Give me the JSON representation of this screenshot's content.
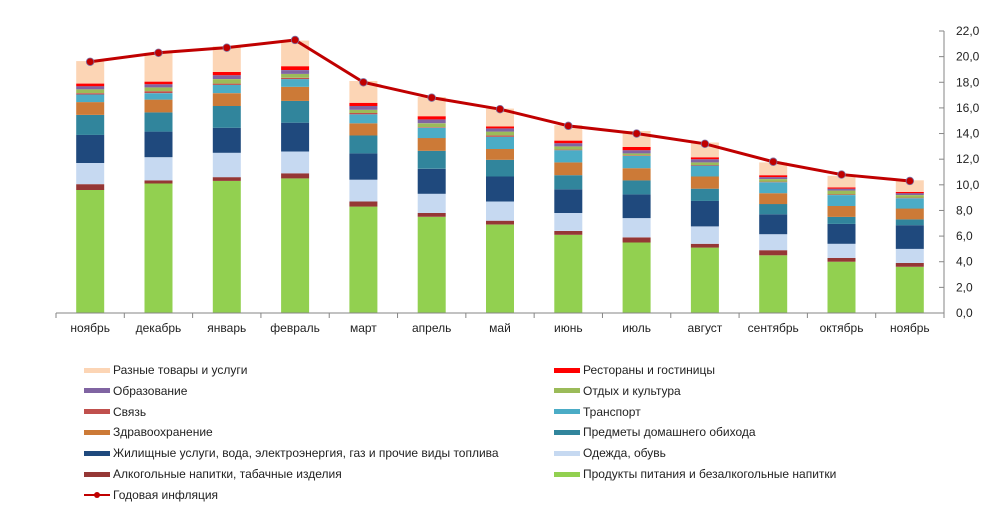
{
  "chart_data": {
    "type": "bar",
    "stacked": true,
    "title": "",
    "xlabel": "",
    "ylabel": "",
    "ylim": [
      0,
      22
    ],
    "y_axis_side": "right",
    "y_ticks": [
      "0,0",
      "2,0",
      "4,0",
      "6,0",
      "8,0",
      "10,0",
      "12,0",
      "14,0",
      "16,0",
      "18,0",
      "20,0",
      "22,0"
    ],
    "y_tick_values": [
      0,
      2,
      4,
      6,
      8,
      10,
      12,
      14,
      16,
      18,
      20,
      22
    ],
    "grid": false,
    "legend_position": "bottom",
    "categories": [
      "ноябрь",
      "декабрь",
      "январь",
      "февраль",
      "март",
      "апрель",
      "май",
      "июнь",
      "июль",
      "август",
      "сентябрь",
      "октябрь",
      "ноябрь"
    ],
    "series": [
      {
        "key": "food",
        "name": "Продукты питания и безалкогольные напитки",
        "color": "#92d050",
        "values": [
          9.6,
          10.1,
          10.3,
          10.5,
          8.3,
          7.5,
          6.9,
          6.1,
          5.5,
          5.1,
          4.5,
          4.0,
          3.6
        ]
      },
      {
        "key": "alcohol",
        "name": "Алкогольные напитки, табачные изделия",
        "color": "#953735",
        "values": [
          0.45,
          0.25,
          0.3,
          0.4,
          0.4,
          0.3,
          0.3,
          0.3,
          0.4,
          0.3,
          0.4,
          0.3,
          0.3
        ]
      },
      {
        "key": "clothing",
        "name": "Одежда, обувь",
        "color": "#c6d9f1",
        "values": [
          1.65,
          1.8,
          1.9,
          1.7,
          1.7,
          1.5,
          1.5,
          1.4,
          1.5,
          1.35,
          1.25,
          1.1,
          1.1
        ]
      },
      {
        "key": "housing",
        "name": "Жилищные услуги, вода, электроэнергия, газ и прочие виды топлива",
        "color": "#1f497d",
        "values": [
          2.2,
          2.0,
          1.95,
          2.25,
          2.05,
          1.95,
          1.95,
          1.85,
          1.85,
          2.0,
          1.55,
          1.55,
          1.85
        ]
      },
      {
        "key": "furnishings",
        "name": "Предметы домашнего обихода",
        "color": "#31859c",
        "values": [
          1.55,
          1.5,
          1.7,
          1.7,
          1.4,
          1.4,
          1.3,
          1.1,
          1.1,
          0.95,
          0.8,
          0.55,
          0.45
        ]
      },
      {
        "key": "health",
        "name": "Здравоохранение",
        "color": "#cc7a37",
        "values": [
          1.0,
          1.0,
          1.0,
          1.1,
          0.95,
          1.0,
          0.85,
          1.0,
          0.95,
          0.95,
          0.85,
          0.85,
          0.85
        ]
      },
      {
        "key": "transport",
        "name": "Транспорт",
        "color": "#4bacc6",
        "values": [
          0.6,
          0.5,
          0.65,
          0.6,
          0.7,
          0.8,
          0.95,
          0.95,
          0.95,
          0.85,
          0.85,
          0.85,
          0.8
        ]
      },
      {
        "key": "communication",
        "name": "Связь",
        "color": "#c0504d",
        "values": [
          0.1,
          0.15,
          0.1,
          0.1,
          0.1,
          0.05,
          0.1,
          0.05,
          0.05,
          0.05,
          0.05,
          0.05,
          0.05
        ]
      },
      {
        "key": "leisure",
        "name": "Отдых и культура",
        "color": "#9bbb59",
        "values": [
          0.3,
          0.3,
          0.35,
          0.3,
          0.25,
          0.3,
          0.3,
          0.25,
          0.15,
          0.2,
          0.2,
          0.3,
          0.2
        ]
      },
      {
        "key": "education",
        "name": "Образование",
        "color": "#8064a2",
        "values": [
          0.25,
          0.25,
          0.3,
          0.3,
          0.3,
          0.3,
          0.25,
          0.25,
          0.25,
          0.25,
          0.15,
          0.15,
          0.15
        ]
      },
      {
        "key": "restaurants",
        "name": "Рестораны и гостиницы",
        "color": "#ff0000",
        "values": [
          0.2,
          0.2,
          0.25,
          0.3,
          0.25,
          0.25,
          0.15,
          0.2,
          0.25,
          0.15,
          0.15,
          0.1,
          0.1
        ]
      },
      {
        "key": "misc",
        "name": "Разные товары и услуги",
        "color": "#fcd5b5",
        "values": [
          1.75,
          2.25,
          2.0,
          2.0,
          1.7,
          1.5,
          1.4,
          1.2,
          1.25,
          1.15,
          1.0,
          0.9,
          0.9
        ]
      }
    ],
    "line_series": {
      "name": "Годовая инфляция",
      "color": "#c00000",
      "values": [
        19.6,
        20.3,
        20.7,
        21.3,
        18.0,
        16.8,
        15.9,
        14.6,
        14.0,
        13.2,
        11.8,
        10.8,
        10.3
      ]
    }
  },
  "legend": {
    "items": [
      {
        "key": "misc",
        "label": "Разные товары и услуги",
        "color": "#fcd5b5"
      },
      {
        "key": "restaurants",
        "label": "Рестораны и гостиницы",
        "color": "#ff0000"
      },
      {
        "key": "education",
        "label": "Образование",
        "color": "#8064a2"
      },
      {
        "key": "leisure",
        "label": "Отдых и культура",
        "color": "#9bbb59"
      },
      {
        "key": "communication",
        "label": "Связь",
        "color": "#c0504d"
      },
      {
        "key": "transport",
        "label": "Транспорт",
        "color": "#4bacc6"
      },
      {
        "key": "health",
        "label": "Здравоохранение",
        "color": "#cc7a37"
      },
      {
        "key": "furnishings",
        "label": "Предметы домашнего обихода",
        "color": "#31859c"
      },
      {
        "key": "housing",
        "label": "Жилищные услуги, вода, электроэнергия, газ и прочие виды топлива",
        "color": "#1f497d"
      },
      {
        "key": "clothing",
        "label": "Одежда, обувь",
        "color": "#c6d9f1"
      },
      {
        "key": "alcohol",
        "label": "Алкогольные напитки, табачные изделия",
        "color": "#953735"
      },
      {
        "key": "food",
        "label": "Продукты питания и безалкогольные напитки",
        "color": "#92d050"
      },
      {
        "key": "inflation",
        "label": "Годовая инфляция",
        "color": "#c00000",
        "is_line": true
      }
    ]
  }
}
